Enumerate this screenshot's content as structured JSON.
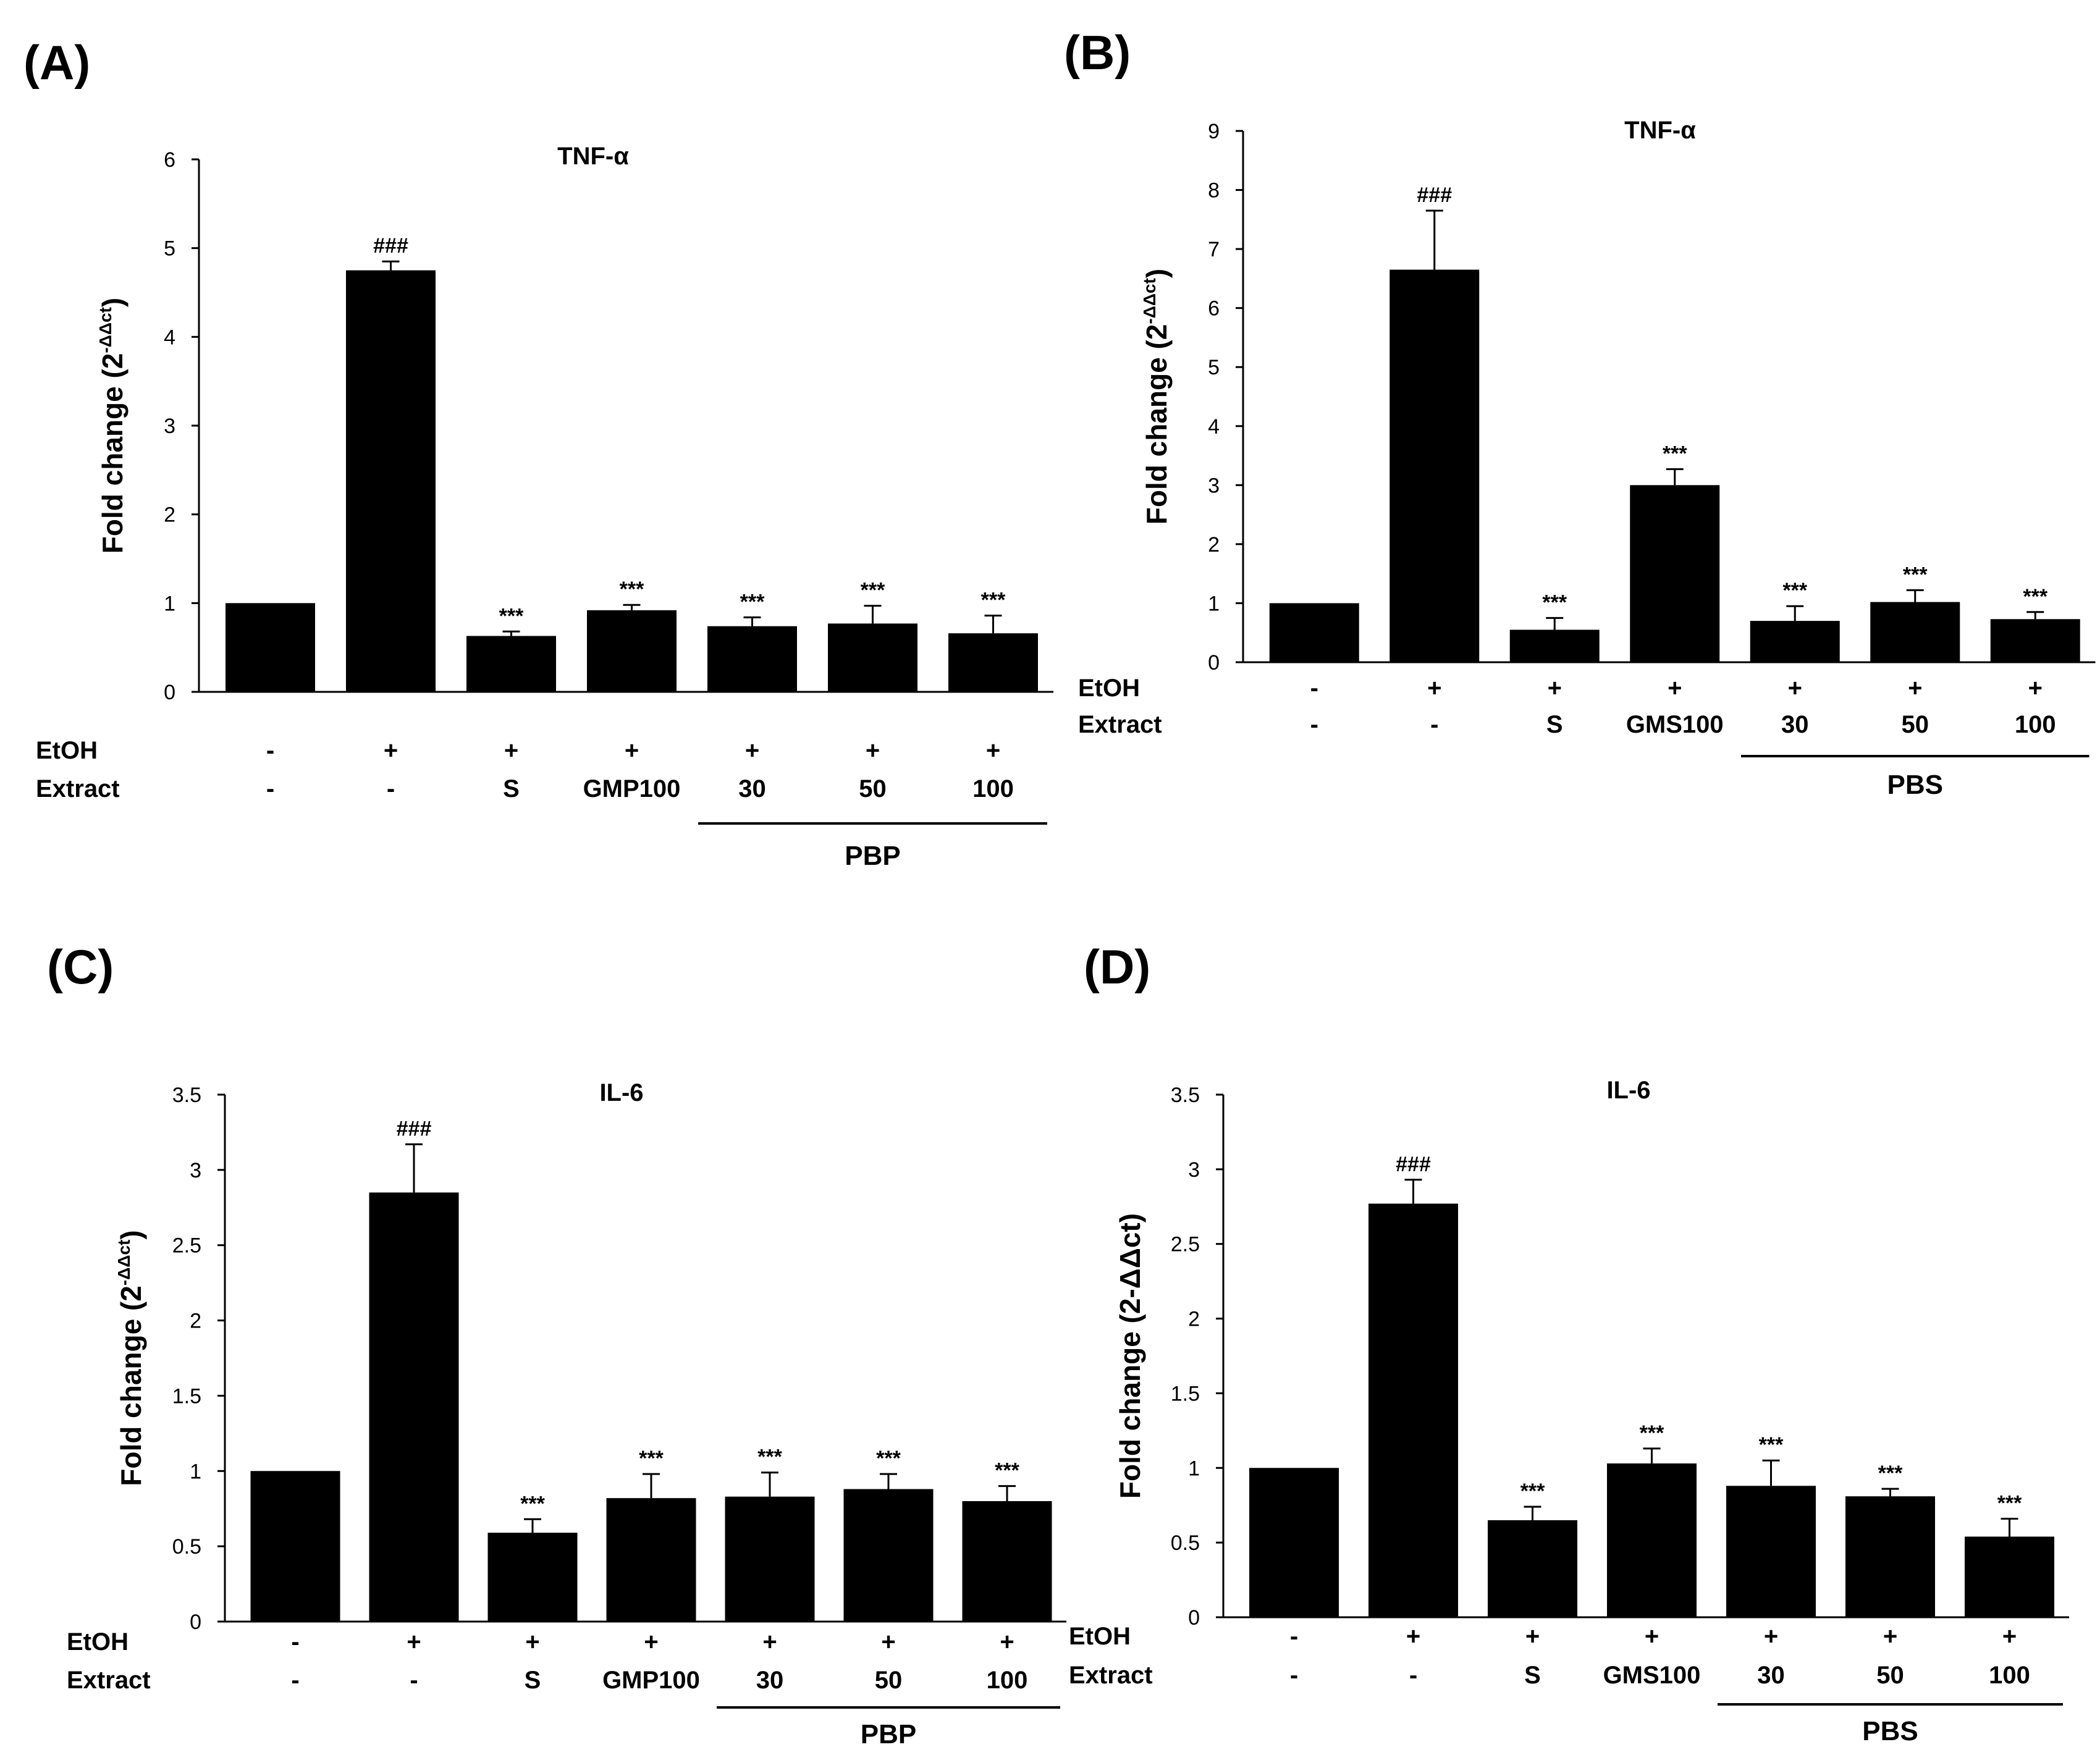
{
  "colors": {
    "bar": "#000000",
    "axis": "#000000",
    "background": "#ffffff"
  },
  "chart_data": [
    {
      "panel": "(A)",
      "type": "bar",
      "title": "TNF-α",
      "ylabel": "Fold change (2",
      "ylabel_sup": "-ΔΔct",
      "ylabel_close": ")",
      "ylim": [
        0,
        6
      ],
      "ticks": [
        "0",
        "1",
        "2",
        "3",
        "4",
        "5",
        "6"
      ],
      "etoh": [
        "-",
        "+",
        "+",
        "+",
        "+",
        "+",
        "+"
      ],
      "extract": [
        "-",
        "-",
        "S",
        "GMP100",
        "30",
        "50",
        "100"
      ],
      "row_labels": [
        "EtOH",
        "Extract"
      ],
      "group_label": "PBP",
      "values": [
        1.0,
        4.75,
        0.63,
        0.92,
        0.74,
        0.77,
        0.66
      ],
      "errors": [
        0.0,
        0.1,
        0.05,
        0.06,
        0.1,
        0.2,
        0.2
      ],
      "annotations": [
        "",
        "###",
        "***",
        "***",
        "***",
        "***",
        "***"
      ]
    },
    {
      "panel": "(B)",
      "type": "bar",
      "title": "TNF-α",
      "ylabel": "Fold change (2",
      "ylabel_sup": "-ΔΔct",
      "ylabel_close": ")",
      "ylim": [
        0,
        9
      ],
      "ticks": [
        "0",
        "1",
        "2",
        "3",
        "4",
        "5",
        "6",
        "7",
        "8",
        "9"
      ],
      "etoh": [
        "-",
        "+",
        "+",
        "+",
        "+",
        "+",
        "+"
      ],
      "extract": [
        "-",
        "-",
        "S",
        "GMS100",
        "30",
        "50",
        "100"
      ],
      "row_labels": [
        "EtOH",
        "Extract"
      ],
      "group_label": "PBS",
      "values": [
        1.0,
        6.65,
        0.55,
        3.0,
        0.7,
        1.02,
        0.73
      ],
      "errors": [
        0.0,
        1.0,
        0.2,
        0.27,
        0.25,
        0.2,
        0.12
      ],
      "annotations": [
        "",
        "###",
        "***",
        "***",
        "***",
        "***",
        "***"
      ]
    },
    {
      "panel": "(C)",
      "type": "bar",
      "title": "IL-6",
      "ylabel": "Fold change (2",
      "ylabel_sup": "-ΔΔct",
      "ylabel_close": ")",
      "ylim": [
        0,
        3.5
      ],
      "ticks": [
        "0",
        "0.5",
        "1",
        "1.5",
        "2",
        "2.5",
        "3",
        "3.5"
      ],
      "etoh": [
        "-",
        "+",
        "+",
        "+",
        "+",
        "+",
        "+"
      ],
      "extract": [
        "-",
        "-",
        "S",
        "GMP100",
        "30",
        "50",
        "100"
      ],
      "row_labels": [
        "EtOH",
        "Extract"
      ],
      "group_label": "PBP",
      "values": [
        1.0,
        2.85,
        0.59,
        0.82,
        0.83,
        0.88,
        0.8
      ],
      "errors": [
        0.0,
        0.32,
        0.09,
        0.16,
        0.16,
        0.1,
        0.1
      ],
      "annotations": [
        "",
        "###",
        "***",
        "***",
        "***",
        "***",
        "***"
      ]
    },
    {
      "panel": "(D)",
      "type": "bar",
      "title": "IL-6",
      "ylabel": "Fold change (2-ΔΔct)",
      "ylabel_sup": "",
      "ylabel_close": "",
      "ylim": [
        0,
        3.5
      ],
      "ticks": [
        "0",
        "0.5",
        "1",
        "1.5",
        "2",
        "2.5",
        "3",
        "3.5"
      ],
      "etoh": [
        "-",
        "+",
        "+",
        "+",
        "+",
        "+",
        "+"
      ],
      "extract": [
        "-",
        "-",
        "S",
        "GMS100",
        "30",
        "50",
        "100"
      ],
      "row_labels": [
        "EtOH",
        "Extract"
      ],
      "group_label": "PBS",
      "values": [
        1.0,
        2.77,
        0.65,
        1.03,
        0.88,
        0.81,
        0.54
      ],
      "errors": [
        0.0,
        0.16,
        0.09,
        0.1,
        0.17,
        0.05,
        0.12
      ],
      "annotations": [
        "",
        "###",
        "***",
        "***",
        "***",
        "***",
        "***"
      ]
    }
  ]
}
